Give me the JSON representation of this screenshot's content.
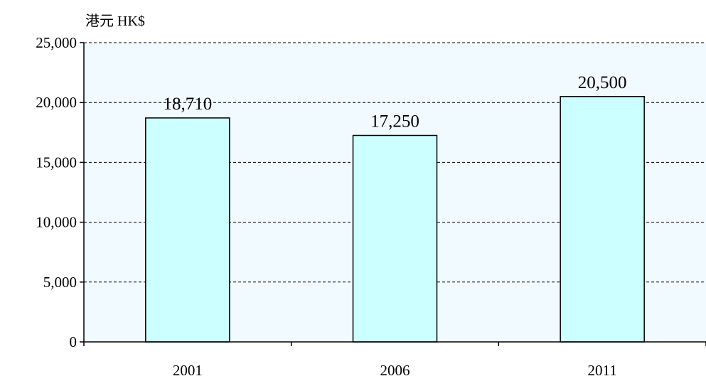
{
  "chart_data": {
    "type": "bar",
    "unit_label": "港元 HK$",
    "categories": [
      "2001",
      "2006",
      "2011"
    ],
    "values": [
      18710,
      17250,
      20500
    ],
    "value_labels": [
      "18,710",
      "17,250",
      "20,500"
    ],
    "ylim": [
      0,
      25000
    ],
    "yticks": [
      0,
      5000,
      10000,
      15000,
      20000,
      25000
    ],
    "ytick_labels": [
      "0",
      "5,000",
      "10,000",
      "15,000",
      "20,000",
      "25,000"
    ],
    "grid": true,
    "colors": {
      "bar_fill": "#ccffff",
      "plot_background": "#f0faff",
      "bar_stroke": "#000000"
    }
  }
}
